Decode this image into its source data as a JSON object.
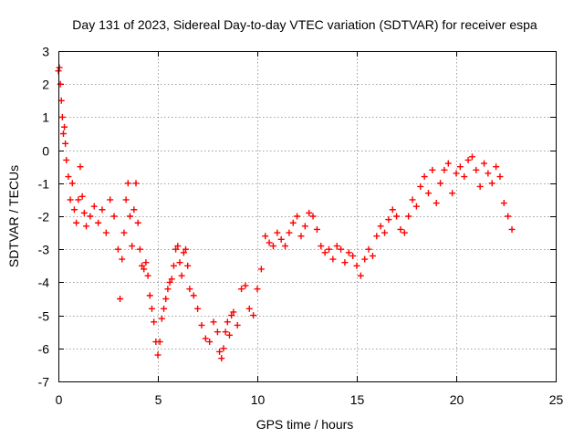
{
  "chart_data": {
    "type": "scatter",
    "title": "Day 131 of 2023, Sidereal Day-to-day VTEC variation (SDTVAR) for receiver espa",
    "xlabel": "GPS time / hours",
    "ylabel": "SDTVAR / TECUs",
    "xlim": [
      0,
      25
    ],
    "ylim": [
      -7,
      3
    ],
    "x_ticks": [
      0,
      5,
      10,
      15,
      20,
      25
    ],
    "y_ticks": [
      -7,
      -6,
      -5,
      -4,
      -3,
      -2,
      -1,
      0,
      1,
      2,
      3
    ],
    "x_tick_labels": [
      "0",
      "5",
      "10",
      "15",
      "20",
      "25"
    ],
    "y_tick_labels": [
      "-7",
      "-6",
      "-5",
      "-4",
      "-3",
      "-2",
      "-1",
      "0",
      "1",
      "2",
      "3"
    ],
    "grid": true,
    "marker": "+",
    "color": "#ff0000",
    "series": [
      {
        "name": "SDTVAR",
        "x": [
          0.0,
          0.05,
          0.1,
          0.15,
          0.2,
          0.25,
          0.3,
          0.35,
          0.4,
          0.5,
          0.6,
          0.7,
          0.8,
          0.9,
          1.0,
          1.1,
          1.2,
          1.3,
          1.4,
          1.6,
          1.8,
          2.0,
          2.2,
          2.4,
          2.6,
          2.8,
          3.0,
          3.1,
          3.2,
          3.3,
          3.4,
          3.5,
          3.6,
          3.7,
          3.8,
          3.9,
          4.0,
          4.1,
          4.2,
          4.3,
          4.4,
          4.5,
          4.6,
          4.7,
          4.8,
          4.9,
          5.0,
          5.1,
          5.2,
          5.3,
          5.4,
          5.5,
          5.6,
          5.7,
          5.8,
          5.9,
          6.0,
          6.1,
          6.2,
          6.3,
          6.4,
          6.5,
          6.6,
          6.8,
          7.0,
          7.2,
          7.4,
          7.6,
          7.8,
          8.0,
          8.1,
          8.2,
          8.3,
          8.4,
          8.5,
          8.6,
          8.7,
          8.8,
          9.0,
          9.2,
          9.4,
          9.6,
          9.8,
          10.0,
          10.2,
          10.4,
          10.6,
          10.8,
          11.0,
          11.2,
          11.4,
          11.6,
          11.8,
          12.0,
          12.2,
          12.4,
          12.6,
          12.8,
          13.0,
          13.2,
          13.4,
          13.6,
          13.8,
          14.0,
          14.2,
          14.4,
          14.6,
          14.8,
          15.0,
          15.2,
          15.4,
          15.6,
          15.8,
          16.0,
          16.2,
          16.4,
          16.6,
          16.8,
          17.0,
          17.2,
          17.4,
          17.6,
          17.8,
          18.0,
          18.2,
          18.4,
          18.6,
          18.8,
          19.0,
          19.2,
          19.4,
          19.6,
          19.8,
          20.0,
          20.2,
          20.4,
          20.6,
          20.8,
          21.0,
          21.2,
          21.4,
          21.6,
          21.8,
          22.0,
          22.2,
          22.4,
          22.6,
          22.8
        ],
        "y": [
          2.4,
          2.5,
          2.0,
          1.5,
          1.0,
          0.5,
          0.7,
          0.2,
          -0.3,
          -0.8,
          -1.5,
          -1.0,
          -1.8,
          -2.2,
          -1.5,
          -0.5,
          -1.4,
          -1.9,
          -2.3,
          -2.0,
          -1.7,
          -2.2,
          -1.8,
          -2.5,
          -1.5,
          -2.0,
          -3.0,
          -4.5,
          -3.3,
          -2.5,
          -1.5,
          -1.0,
          -2.0,
          -2.9,
          -1.8,
          -1.0,
          -2.2,
          -3.0,
          -3.5,
          -3.6,
          -3.4,
          -3.8,
          -4.4,
          -4.8,
          -5.2,
          -5.8,
          -6.2,
          -5.8,
          -5.1,
          -4.8,
          -4.5,
          -4.2,
          -4.0,
          -3.9,
          -3.5,
          -3.0,
          -2.9,
          -3.4,
          -3.8,
          -3.1,
          -3.0,
          -3.5,
          -4.2,
          -4.4,
          -4.8,
          -5.3,
          -5.7,
          -5.8,
          -5.2,
          -5.5,
          -6.1,
          -6.3,
          -6.0,
          -5.5,
          -5.2,
          -5.6,
          -5.0,
          -4.9,
          -5.3,
          -4.2,
          -4.1,
          -4.8,
          -5.0,
          -4.2,
          -3.6,
          -2.6,
          -2.8,
          -2.9,
          -2.5,
          -2.7,
          -2.9,
          -2.5,
          -2.2,
          -2.0,
          -2.6,
          -2.3,
          -1.9,
          -2.0,
          -2.4,
          -2.9,
          -3.1,
          -3.0,
          -3.3,
          -2.9,
          -3.0,
          -3.4,
          -3.1,
          -3.2,
          -3.5,
          -3.8,
          -3.3,
          -3.0,
          -3.2,
          -2.6,
          -2.3,
          -2.5,
          -2.1,
          -1.8,
          -2.0,
          -2.4,
          -2.5,
          -2.0,
          -1.5,
          -1.7,
          -1.1,
          -0.8,
          -1.3,
          -0.6,
          -1.6,
          -1.0,
          -0.6,
          -0.4,
          -1.3,
          -0.7,
          -0.5,
          -0.8,
          -0.3,
          -0.2,
          -0.6,
          -1.1,
          -0.4,
          -0.7,
          -1.0,
          -0.5,
          -0.8,
          -1.6,
          -2.0,
          -2.4
        ]
      }
    ]
  }
}
